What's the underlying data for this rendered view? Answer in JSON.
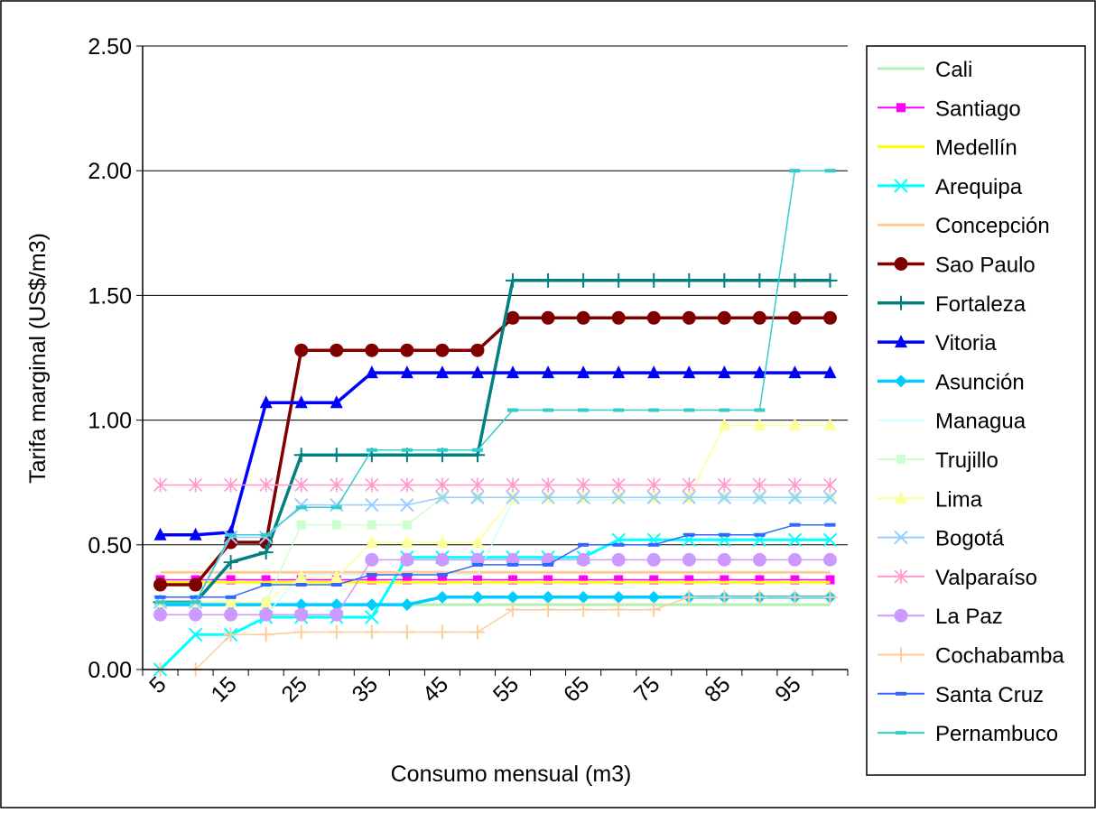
{
  "chart_data": {
    "type": "line",
    "title": "",
    "xlabel": "Consumo mensual (m3)",
    "ylabel": "Tarifa marginal (US$/m3)",
    "ylim": [
      0,
      2.5
    ],
    "yticks": [
      "0.00",
      "0.50",
      "1.00",
      "1.50",
      "2.00",
      "2.50"
    ],
    "xtick_labels": [
      "5",
      "15",
      "25",
      "35",
      "45",
      "55",
      "65",
      "75",
      "85",
      "95"
    ],
    "x": [
      5,
      10,
      15,
      20,
      25,
      30,
      35,
      40,
      45,
      50,
      55,
      60,
      65,
      70,
      75,
      80,
      85,
      90,
      95,
      100
    ],
    "grid": "horizontal",
    "legend": "right",
    "series": [
      {
        "name": "Cali",
        "color": "#b3f0b3",
        "marker": "none",
        "values": [
          0.26,
          0.26,
          0.26,
          0.26,
          0.26,
          0.26,
          0.26,
          0.26,
          0.26,
          0.26,
          0.26,
          0.26,
          0.26,
          0.26,
          0.26,
          0.26,
          0.26,
          0.26,
          0.26,
          0.26
        ]
      },
      {
        "name": "Santiago",
        "color": "#ff00ff",
        "marker": "square",
        "values": [
          0.36,
          0.36,
          0.36,
          0.36,
          0.36,
          0.36,
          0.36,
          0.36,
          0.36,
          0.36,
          0.36,
          0.36,
          0.36,
          0.36,
          0.36,
          0.36,
          0.36,
          0.36,
          0.36,
          0.36
        ]
      },
      {
        "name": "Medellín",
        "color": "#ffff00",
        "marker": "none",
        "values": [
          0.35,
          0.35,
          0.35,
          0.35,
          0.35,
          0.35,
          0.35,
          0.35,
          0.35,
          0.35,
          0.35,
          0.35,
          0.35,
          0.35,
          0.35,
          0.35,
          0.35,
          0.35,
          0.35,
          0.35
        ]
      },
      {
        "name": "Arequipa",
        "color": "#00ffff",
        "marker": "x",
        "values": [
          0.0,
          0.14,
          0.14,
          0.21,
          0.21,
          0.21,
          0.21,
          0.45,
          0.45,
          0.45,
          0.45,
          0.45,
          0.45,
          0.52,
          0.52,
          0.52,
          0.52,
          0.52,
          0.52,
          0.52
        ]
      },
      {
        "name": "Concepción",
        "color": "#ffcc99",
        "marker": "none",
        "values": [
          0.39,
          0.39,
          0.39,
          0.39,
          0.39,
          0.39,
          0.39,
          0.39,
          0.39,
          0.39,
          0.39,
          0.39,
          0.39,
          0.39,
          0.39,
          0.39,
          0.39,
          0.39,
          0.39,
          0.39
        ]
      },
      {
        "name": "Sao Paulo",
        "color": "#800000",
        "marker": "circle",
        "values": [
          0.34,
          0.34,
          0.51,
          0.51,
          1.28,
          1.28,
          1.28,
          1.28,
          1.28,
          1.28,
          1.41,
          1.41,
          1.41,
          1.41,
          1.41,
          1.41,
          1.41,
          1.41,
          1.41,
          1.41
        ]
      },
      {
        "name": "Fortaleza",
        "color": "#008080",
        "marker": "plus",
        "values": [
          0.27,
          0.27,
          0.43,
          0.47,
          0.86,
          0.86,
          0.86,
          0.86,
          0.86,
          0.86,
          1.56,
          1.56,
          1.56,
          1.56,
          1.56,
          1.56,
          1.56,
          1.56,
          1.56,
          1.56
        ]
      },
      {
        "name": "Vitoria",
        "color": "#0000ff",
        "marker": "triangle",
        "values": [
          0.54,
          0.54,
          0.55,
          1.07,
          1.07,
          1.07,
          1.19,
          1.19,
          1.19,
          1.19,
          1.19,
          1.19,
          1.19,
          1.19,
          1.19,
          1.19,
          1.19,
          1.19,
          1.19,
          1.19
        ]
      },
      {
        "name": "Asunción",
        "color": "#00ccff",
        "marker": "diamond",
        "values": [
          0.26,
          0.26,
          0.26,
          0.26,
          0.26,
          0.26,
          0.26,
          0.26,
          0.29,
          0.29,
          0.29,
          0.29,
          0.29,
          0.29,
          0.29,
          0.29,
          0.29,
          0.29,
          0.29,
          0.29
        ]
      },
      {
        "name": "Managua",
        "color": "#ccffff",
        "marker": "none",
        "values": [
          0.22,
          0.22,
          0.22,
          0.22,
          0.38,
          0.38,
          0.38,
          0.38,
          0.38,
          0.38,
          0.68,
          0.68,
          0.68,
          0.68,
          0.68,
          0.68,
          0.68,
          0.68,
          0.68,
          0.68
        ]
      },
      {
        "name": "Trujillo",
        "color": "#ccffcc",
        "marker": "square",
        "values": [
          0.27,
          0.27,
          0.27,
          0.27,
          0.58,
          0.58,
          0.58,
          0.58,
          0.69,
          0.69,
          0.69,
          0.69,
          0.69,
          0.69,
          0.69,
          0.69,
          0.69,
          0.69,
          0.69,
          0.69
        ]
      },
      {
        "name": "Lima",
        "color": "#ffff99",
        "marker": "triangle",
        "values": [
          0.27,
          0.27,
          0.27,
          0.27,
          0.37,
          0.37,
          0.51,
          0.51,
          0.51,
          0.51,
          0.69,
          0.69,
          0.69,
          0.69,
          0.69,
          0.69,
          0.98,
          0.98,
          0.98,
          0.98
        ]
      },
      {
        "name": "Bogotá",
        "color": "#99ccff",
        "marker": "x",
        "values": [
          0.27,
          0.27,
          0.53,
          0.53,
          0.66,
          0.66,
          0.66,
          0.66,
          0.69,
          0.69,
          0.69,
          0.69,
          0.69,
          0.69,
          0.69,
          0.69,
          0.69,
          0.69,
          0.69,
          0.69
        ]
      },
      {
        "name": "Valparaíso",
        "color": "#ff99cc",
        "marker": "star",
        "values": [
          0.74,
          0.74,
          0.74,
          0.74,
          0.74,
          0.74,
          0.74,
          0.74,
          0.74,
          0.74,
          0.74,
          0.74,
          0.74,
          0.74,
          0.74,
          0.74,
          0.74,
          0.74,
          0.74,
          0.74
        ]
      },
      {
        "name": "La Paz",
        "color": "#cc99ff",
        "marker": "circle",
        "values": [
          0.22,
          0.22,
          0.22,
          0.22,
          0.22,
          0.22,
          0.44,
          0.44,
          0.44,
          0.44,
          0.44,
          0.44,
          0.44,
          0.44,
          0.44,
          0.44,
          0.44,
          0.44,
          0.44,
          0.44
        ]
      },
      {
        "name": "Cochabamba",
        "color": "#ffcc99",
        "marker": "plus",
        "values": [
          0.0,
          0.0,
          0.14,
          0.14,
          0.15,
          0.15,
          0.15,
          0.15,
          0.15,
          0.15,
          0.24,
          0.24,
          0.24,
          0.24,
          0.24,
          0.29,
          0.29,
          0.29,
          0.29,
          0.29
        ]
      },
      {
        "name": "Santa Cruz",
        "color": "#3366ff",
        "marker": "dash",
        "values": [
          0.29,
          0.29,
          0.29,
          0.34,
          0.34,
          0.34,
          0.38,
          0.38,
          0.38,
          0.42,
          0.42,
          0.42,
          0.5,
          0.5,
          0.5,
          0.54,
          0.54,
          0.54,
          0.58,
          0.58
        ]
      },
      {
        "name": "Pernambuco",
        "color": "#33cccc",
        "marker": "dash",
        "values": [
          0.27,
          0.27,
          0.54,
          0.54,
          0.65,
          0.65,
          0.88,
          0.88,
          0.88,
          0.88,
          1.04,
          1.04,
          1.04,
          1.04,
          1.04,
          1.04,
          1.04,
          1.04,
          2.0,
          2.0
        ]
      }
    ]
  }
}
